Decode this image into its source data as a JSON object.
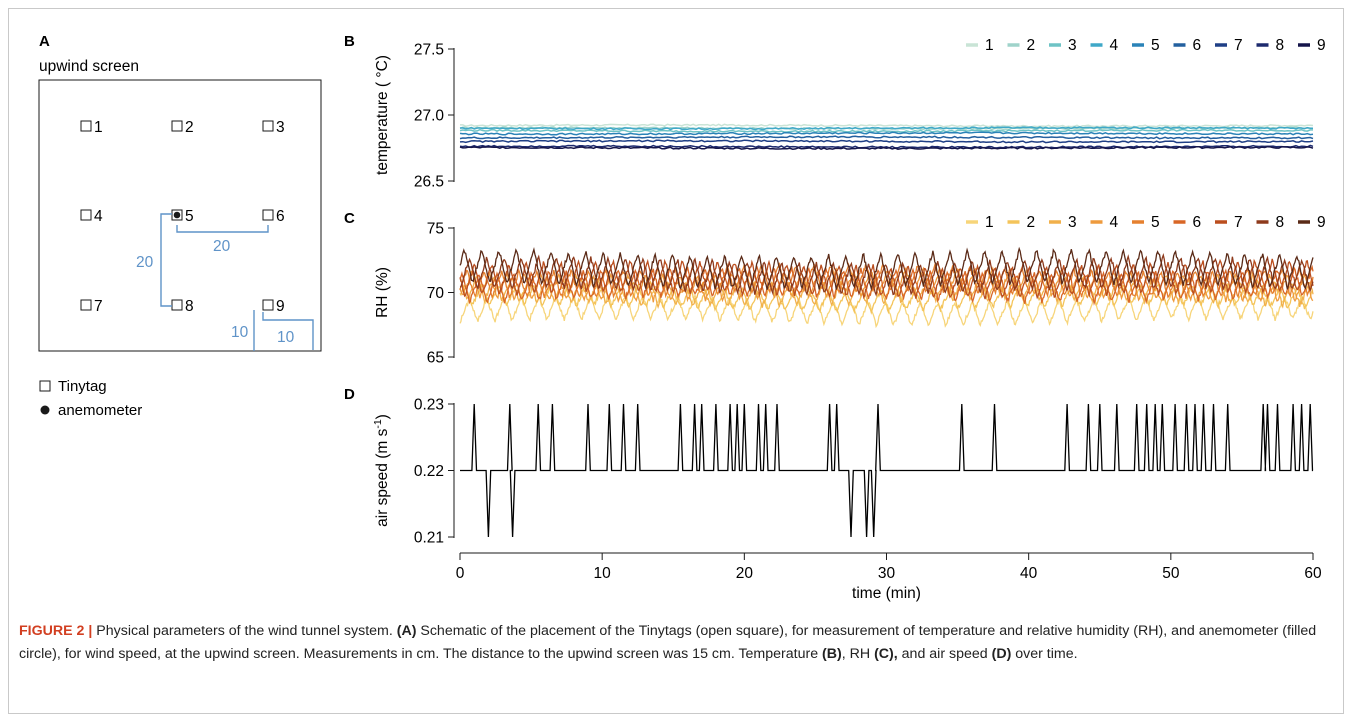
{
  "panel_a": {
    "panel_label": "A",
    "title": "upwind screen",
    "sensors": [
      "1",
      "2",
      "3",
      "4",
      "5",
      "6",
      "7",
      "8",
      "9"
    ],
    "dims": {
      "a": "20",
      "b": "20",
      "c": "10",
      "d": "10"
    },
    "legend": {
      "tinytag": "Tinytag",
      "anemometer": "anemometer"
    },
    "dim_color": "#5f93c8"
  },
  "chart_data": [
    {
      "panel": "B",
      "type": "line",
      "ylabel": "temperature ( °C)",
      "ylim": [
        26.5,
        27.5
      ],
      "yticks": [
        "26.5",
        "27.0",
        "27.5"
      ],
      "xlim": [
        0,
        60
      ],
      "grid": false,
      "legend_position": "top-right",
      "series": [
        {
          "name": "1",
          "color": "#c9e4d6",
          "value": 26.92
        },
        {
          "name": "2",
          "color": "#9fd3ca",
          "value": 26.9
        },
        {
          "name": "3",
          "color": "#6ec3c5",
          "value": 26.88
        },
        {
          "name": "4",
          "color": "#3fa8c8",
          "value": 26.9
        },
        {
          "name": "5",
          "color": "#2a83b8",
          "value": 26.86
        },
        {
          "name": "6",
          "color": "#23609f",
          "value": 26.83
        },
        {
          "name": "7",
          "color": "#1f3f86",
          "value": 26.8
        },
        {
          "name": "8",
          "color": "#1d2a6e",
          "value": 26.76
        },
        {
          "name": "9",
          "color": "#15154a",
          "value": 26.75
        }
      ]
    },
    {
      "panel": "C",
      "type": "line",
      "ylabel": "RH (%)",
      "ylim": [
        65,
        75
      ],
      "yticks": [
        "65",
        "70",
        "75"
      ],
      "xlim": [
        0,
        60
      ],
      "grid": false,
      "legend_position": "top-right",
      "series": [
        {
          "name": "1",
          "color": "#f7d57a",
          "mean": 68.6,
          "amp": 0.9
        },
        {
          "name": "2",
          "color": "#f4c45a",
          "mean": 69.6,
          "amp": 0.8
        },
        {
          "name": "3",
          "color": "#f1b04b",
          "mean": 70.1,
          "amp": 0.9
        },
        {
          "name": "4",
          "color": "#ee9a3d",
          "mean": 70.6,
          "amp": 1.0
        },
        {
          "name": "5",
          "color": "#e5802f",
          "mean": 70.9,
          "amp": 1.0
        },
        {
          "name": "6",
          "color": "#d86626",
          "mean": 70.6,
          "amp": 1.1
        },
        {
          "name": "7",
          "color": "#bb4e1e",
          "mean": 71.0,
          "amp": 1.2
        },
        {
          "name": "8",
          "color": "#8e3a1c",
          "mean": 71.3,
          "amp": 1.2
        },
        {
          "name": "9",
          "color": "#5a2a17",
          "mean": 71.8,
          "amp": 1.3
        }
      ]
    },
    {
      "panel": "D",
      "type": "line",
      "ylabel": "air speed (m s",
      "ylabel_sup": "-1",
      "ylabel_close": ")",
      "ylim": [
        0.21,
        0.23
      ],
      "yticks": [
        "0.21",
        "0.22",
        "0.23"
      ],
      "xlabel": "time (min)",
      "xticks": [
        "0",
        "10",
        "20",
        "30",
        "40",
        "50",
        "60"
      ],
      "xlim": [
        0,
        60
      ],
      "grid": false,
      "baseline": 0.22,
      "color": "#000000",
      "spikes_up": [
        1,
        3.5,
        5.5,
        6.5,
        9,
        10.5,
        11.5,
        12.5,
        15.5,
        16.5,
        17,
        18,
        19,
        19.5,
        20,
        21,
        21.5,
        22.3,
        26,
        26.5,
        29.4,
        35.3,
        37.6,
        42.7,
        44.2,
        45,
        46.2,
        47.6,
        48.3,
        48.9,
        49.4,
        50.3,
        51.1,
        51.7,
        52.3,
        53,
        54,
        56.5,
        56.8,
        57.5,
        58.6,
        59.2,
        59.8
      ],
      "spikes_down": [
        2,
        3.7,
        27.5,
        28.6,
        29.1
      ]
    }
  ],
  "caption": {
    "figure_label": "FIGURE 2 |",
    "p1": " Physical parameters of the wind tunnel system. ",
    "a_label": "(A)",
    "p2": " Schematic of the placement of the Tinytags (open square), for measurement of temperature and relative humidity (RH), and anemometer (filled circle), for wind speed, at the upwind screen. Measurements in cm. The distance to the upwind screen was 15 cm. Temperature ",
    "b_label": "(B)",
    "p3": ", RH ",
    "c_label": "(C),",
    "p4": " and air speed ",
    "d_label": "(D)",
    "p5": " over time."
  }
}
